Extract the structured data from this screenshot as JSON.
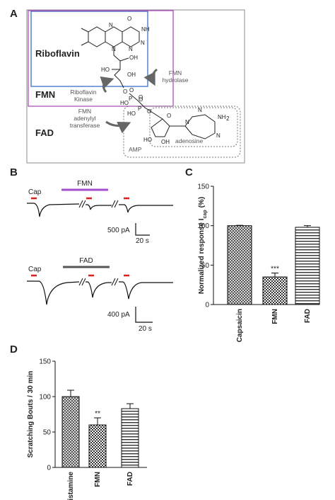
{
  "panel_a": {
    "label": "A",
    "compounds": [
      "Riboflavin",
      "FMN",
      "FAD"
    ],
    "enzymes": {
      "kinase": [
        "Riboflavin",
        "Kinase"
      ],
      "hydrolase": [
        "FMN",
        "hydrolase"
      ],
      "transferase": [
        "FMN",
        "adenylyl",
        "transferase"
      ]
    },
    "groups": [
      "AMP",
      "adenosine"
    ],
    "atoms": [
      "O",
      "NH",
      "N",
      "N",
      "N",
      "N",
      "OH",
      "HO",
      "OH",
      "O",
      "P",
      "O",
      "HO",
      "O",
      "P",
      "O",
      "HO",
      "O",
      "O",
      "N",
      "N",
      "N",
      "NH",
      "2",
      "HO",
      "OH"
    ]
  },
  "panel_b": {
    "label": "B",
    "traces": [
      {
        "stimulus": "Cap",
        "drug": "FMN",
        "scale_current": "500 pA",
        "scale_time": "20 s"
      },
      {
        "stimulus": "Cap",
        "drug": "FAD",
        "scale_current": "400 pA",
        "scale_time": "20 s"
      }
    ]
  },
  "chart_data": [
    {
      "type": "bar",
      "panel": "C",
      "ylabel": "Normalized response I",
      "ylabel_sub": "cap",
      "ylabel_end": "(%)",
      "categories": [
        "Capsaicin",
        "FMN",
        "FAD"
      ],
      "values": [
        100,
        35,
        98
      ],
      "errors": [
        0.5,
        5,
        2
      ],
      "patterns": [
        "crosshatch",
        "checker",
        "hstripes"
      ],
      "value_annotations": [
        null,
        "***",
        null
      ],
      "ylim": [
        0,
        150
      ],
      "yticks": [
        0,
        50,
        100,
        150
      ]
    },
    {
      "type": "bar",
      "panel": "D",
      "ylabel": "Scratching Bouts / 30 min",
      "categories": [
        "Histamine",
        "FMN",
        "FAD"
      ],
      "values": [
        100,
        60,
        83
      ],
      "errors": [
        9,
        10,
        7
      ],
      "patterns": [
        "crosshatch",
        "checker",
        "hstripes"
      ],
      "value_annotations": [
        null,
        "**",
        null
      ],
      "ylim": [
        0,
        150
      ],
      "yticks": [
        0,
        50,
        100,
        150
      ]
    }
  ]
}
